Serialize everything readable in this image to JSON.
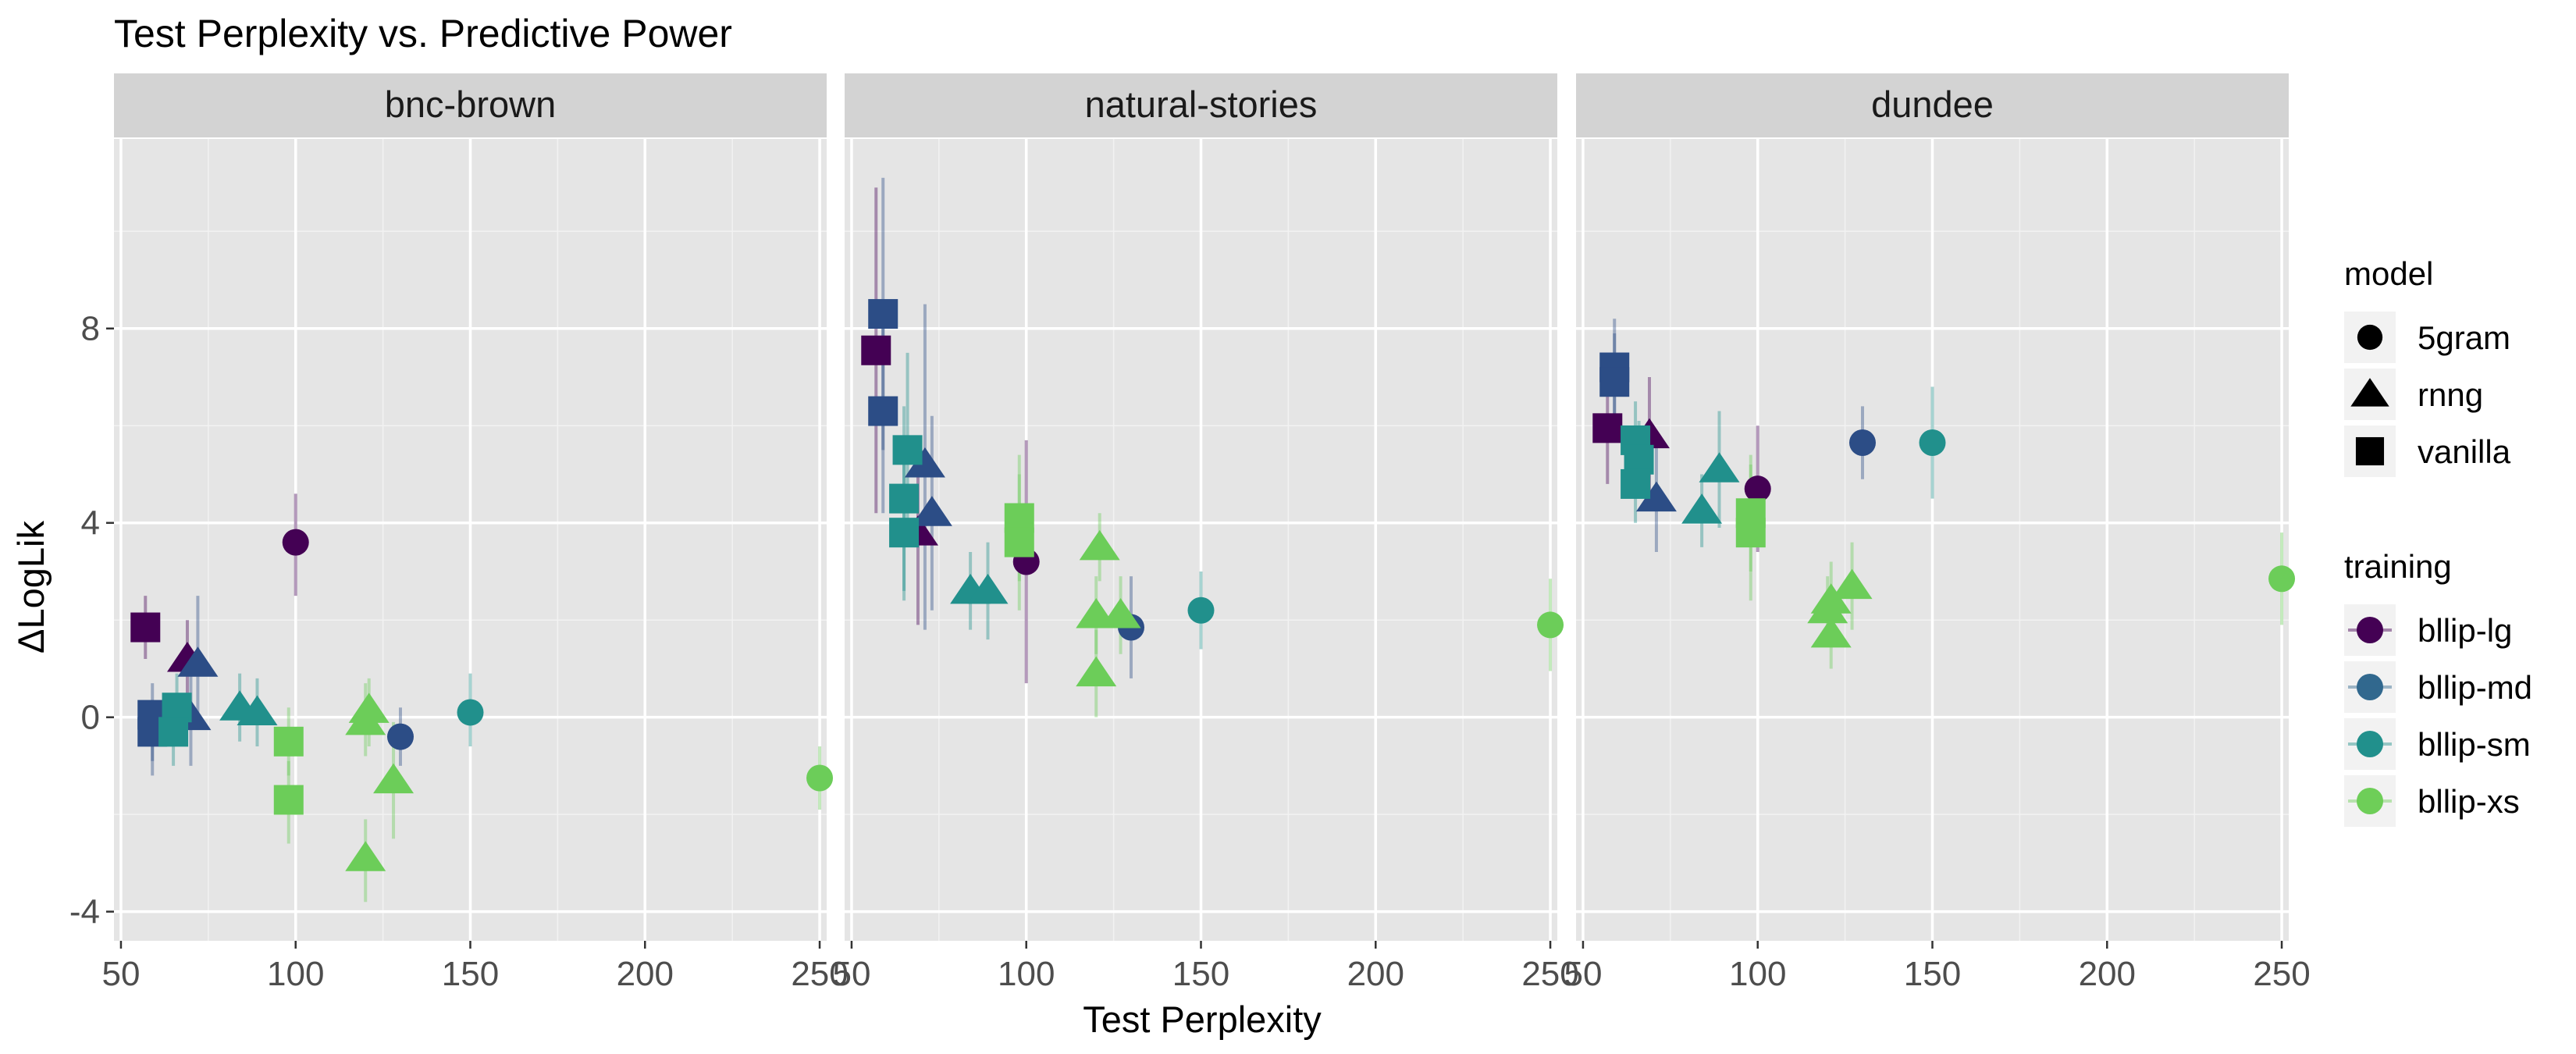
{
  "chart_data": {
    "type": "scatter",
    "title": "Test Perplexity vs. Predictive Power",
    "xlabel": "Test Perplexity",
    "ylabel": "ΔLogLik",
    "xlim": [
      48,
      252
    ],
    "ylim": [
      -4.6,
      11.9
    ],
    "x_ticks": [
      50,
      100,
      150,
      200,
      250
    ],
    "x_tick_labels": [
      "50",
      "100",
      "150",
      "200",
      "250"
    ],
    "y_ticks": [
      -4,
      0,
      4,
      8
    ],
    "y_tick_labels": [
      "-4",
      "0",
      "4",
      "8"
    ],
    "grid": true,
    "facets": [
      "bnc-brown",
      "natural-stories",
      "dundee"
    ],
    "legend_position": "right",
    "legend": {
      "model_title": "model",
      "model": [
        {
          "name": "5gram",
          "shape": "circle"
        },
        {
          "name": "rnng",
          "shape": "triangle"
        },
        {
          "name": "vanilla",
          "shape": "square"
        }
      ],
      "training_title": "training",
      "training": [
        {
          "name": "bllip-lg",
          "color": "#440154"
        },
        {
          "name": "bllip-md",
          "color": "#31688e"
        },
        {
          "name": "bllip-sm",
          "color": "#21908c"
        },
        {
          "name": "bllip-xs",
          "color": "#6ece58"
        }
      ]
    },
    "colors": {
      "bllip-lg": "#440154",
      "bllip-md": "#2c4d86",
      "bllip-sm": "#21908c",
      "bllip-xs": "#6ccd59",
      "panel_bg": "#e5e5e5",
      "strip_bg": "#d3d3d3",
      "grid": "#ffffff"
    },
    "points": [
      {
        "facet": "bnc-brown",
        "model": "5gram",
        "training": "bllip-lg",
        "x": 100,
        "y": 3.6,
        "ymin": 2.5,
        "ymax": 4.6
      },
      {
        "facet": "bnc-brown",
        "model": "5gram",
        "training": "bllip-md",
        "x": 130,
        "y": -0.4,
        "ymin": -1.0,
        "ymax": 0.2
      },
      {
        "facet": "bnc-brown",
        "model": "5gram",
        "training": "bllip-sm",
        "x": 150,
        "y": 0.1,
        "ymin": -0.6,
        "ymax": 0.9
      },
      {
        "facet": "bnc-brown",
        "model": "5gram",
        "training": "bllip-xs",
        "x": 250,
        "y": -1.25,
        "ymin": -1.9,
        "ymax": -0.6
      },
      {
        "facet": "bnc-brown",
        "model": "rnng",
        "training": "bllip-lg",
        "x": 69,
        "y": 1.2,
        "ymin": 0.3,
        "ymax": 2.0
      },
      {
        "facet": "bnc-brown",
        "model": "rnng",
        "training": "bllip-md",
        "x": 72,
        "y": 1.1,
        "ymin": -0.2,
        "ymax": 2.5
      },
      {
        "facet": "bnc-brown",
        "model": "rnng",
        "training": "bllip-md",
        "x": 70,
        "y": 0.0,
        "ymin": -1.0,
        "ymax": 1.0
      },
      {
        "facet": "bnc-brown",
        "model": "rnng",
        "training": "bllip-sm",
        "x": 84,
        "y": 0.2,
        "ymin": -0.5,
        "ymax": 0.9
      },
      {
        "facet": "bnc-brown",
        "model": "rnng",
        "training": "bllip-sm",
        "x": 89,
        "y": 0.1,
        "ymin": -0.6,
        "ymax": 0.8
      },
      {
        "facet": "bnc-brown",
        "model": "rnng",
        "training": "bllip-xs",
        "x": 121,
        "y": 0.15,
        "ymin": -0.6,
        "ymax": 0.8
      },
      {
        "facet": "bnc-brown",
        "model": "rnng",
        "training": "bllip-xs",
        "x": 120,
        "y": -0.1,
        "ymin": -0.8,
        "ymax": 0.7
      },
      {
        "facet": "bnc-brown",
        "model": "rnng",
        "training": "bllip-xs",
        "x": 128,
        "y": -1.3,
        "ymin": -2.5,
        "ymax": -0.1
      },
      {
        "facet": "bnc-brown",
        "model": "rnng",
        "training": "bllip-xs",
        "x": 120,
        "y": -2.9,
        "ymin": -3.8,
        "ymax": -2.1
      },
      {
        "facet": "bnc-brown",
        "model": "vanilla",
        "training": "bllip-lg",
        "x": 57,
        "y": 1.85,
        "ymin": 1.2,
        "ymax": 2.5
      },
      {
        "facet": "bnc-brown",
        "model": "vanilla",
        "training": "bllip-md",
        "x": 59,
        "y": 0.05,
        "ymin": -0.9,
        "ymax": 0.7
      },
      {
        "facet": "bnc-brown",
        "model": "vanilla",
        "training": "bllip-md",
        "x": 59,
        "y": -0.3,
        "ymin": -1.2,
        "ymax": 0.3
      },
      {
        "facet": "bnc-brown",
        "model": "vanilla",
        "training": "bllip-sm",
        "x": 66,
        "y": 0.2,
        "ymin": -0.5,
        "ymax": 0.9
      },
      {
        "facet": "bnc-brown",
        "model": "vanilla",
        "training": "bllip-sm",
        "x": 65,
        "y": -0.3,
        "ymin": -1.0,
        "ymax": 0.4
      },
      {
        "facet": "bnc-brown",
        "model": "vanilla",
        "training": "bllip-xs",
        "x": 98,
        "y": -0.5,
        "ymin": -1.2,
        "ymax": 0.2
      },
      {
        "facet": "bnc-brown",
        "model": "vanilla",
        "training": "bllip-xs",
        "x": 98,
        "y": -1.7,
        "ymin": -2.6,
        "ymax": -0.9
      },
      {
        "facet": "natural-stories",
        "model": "5gram",
        "training": "bllip-lg",
        "x": 100,
        "y": 3.2,
        "ymin": 0.7,
        "ymax": 5.7
      },
      {
        "facet": "natural-stories",
        "model": "5gram",
        "training": "bllip-md",
        "x": 130,
        "y": 1.85,
        "ymin": 0.8,
        "ymax": 2.9
      },
      {
        "facet": "natural-stories",
        "model": "5gram",
        "training": "bllip-sm",
        "x": 150,
        "y": 2.2,
        "ymin": 1.4,
        "ymax": 3.0
      },
      {
        "facet": "natural-stories",
        "model": "5gram",
        "training": "bllip-xs",
        "x": 250,
        "y": 1.9,
        "ymin": 0.95,
        "ymax": 2.85
      },
      {
        "facet": "natural-stories",
        "model": "rnng",
        "training": "bllip-lg",
        "x": 69,
        "y": 3.8,
        "ymin": 1.9,
        "ymax": 5.7
      },
      {
        "facet": "natural-stories",
        "model": "rnng",
        "training": "bllip-md",
        "x": 71,
        "y": 5.2,
        "ymin": 1.8,
        "ymax": 8.5
      },
      {
        "facet": "natural-stories",
        "model": "rnng",
        "training": "bllip-md",
        "x": 73,
        "y": 4.2,
        "ymin": 2.2,
        "ymax": 6.2
      },
      {
        "facet": "natural-stories",
        "model": "rnng",
        "training": "bllip-sm",
        "x": 84,
        "y": 2.6,
        "ymin": 1.8,
        "ymax": 3.4
      },
      {
        "facet": "natural-stories",
        "model": "rnng",
        "training": "bllip-sm",
        "x": 89,
        "y": 2.6,
        "ymin": 1.6,
        "ymax": 3.6
      },
      {
        "facet": "natural-stories",
        "model": "rnng",
        "training": "bllip-xs",
        "x": 121,
        "y": 3.5,
        "ymin": 2.8,
        "ymax": 4.2
      },
      {
        "facet": "natural-stories",
        "model": "rnng",
        "training": "bllip-xs",
        "x": 120,
        "y": 2.1,
        "ymin": 1.3,
        "ymax": 2.9
      },
      {
        "facet": "natural-stories",
        "model": "rnng",
        "training": "bllip-xs",
        "x": 127,
        "y": 2.1,
        "ymin": 1.3,
        "ymax": 2.9
      },
      {
        "facet": "natural-stories",
        "model": "rnng",
        "training": "bllip-xs",
        "x": 120,
        "y": 0.9,
        "ymin": 0.0,
        "ymax": 1.8
      },
      {
        "facet": "natural-stories",
        "model": "vanilla",
        "training": "bllip-lg",
        "x": 57,
        "y": 7.55,
        "ymin": 4.2,
        "ymax": 10.9
      },
      {
        "facet": "natural-stories",
        "model": "vanilla",
        "training": "bllip-md",
        "x": 59,
        "y": 8.3,
        "ymin": 5.5,
        "ymax": 11.1
      },
      {
        "facet": "natural-stories",
        "model": "vanilla",
        "training": "bllip-md",
        "x": 59,
        "y": 6.3,
        "ymin": 4.2,
        "ymax": 8.4
      },
      {
        "facet": "natural-stories",
        "model": "vanilla",
        "training": "bllip-sm",
        "x": 66,
        "y": 5.5,
        "ymin": 3.5,
        "ymax": 7.5
      },
      {
        "facet": "natural-stories",
        "model": "vanilla",
        "training": "bllip-sm",
        "x": 65,
        "y": 4.5,
        "ymin": 2.6,
        "ymax": 6.4
      },
      {
        "facet": "natural-stories",
        "model": "vanilla",
        "training": "bllip-sm",
        "x": 65,
        "y": 3.8,
        "ymin": 2.4,
        "ymax": 5.2
      },
      {
        "facet": "natural-stories",
        "model": "vanilla",
        "training": "bllip-xs",
        "x": 98,
        "y": 4.1,
        "ymin": 2.8,
        "ymax": 5.4
      },
      {
        "facet": "natural-stories",
        "model": "vanilla",
        "training": "bllip-xs",
        "x": 98,
        "y": 3.6,
        "ymin": 2.2,
        "ymax": 5.0
      },
      {
        "facet": "dundee",
        "model": "5gram",
        "training": "bllip-lg",
        "x": 100,
        "y": 4.7,
        "ymin": 3.4,
        "ymax": 6.0
      },
      {
        "facet": "dundee",
        "model": "5gram",
        "training": "bllip-md",
        "x": 130,
        "y": 5.65,
        "ymin": 4.9,
        "ymax": 6.4
      },
      {
        "facet": "dundee",
        "model": "5gram",
        "training": "bllip-sm",
        "x": 150,
        "y": 5.65,
        "ymin": 4.5,
        "ymax": 6.8
      },
      {
        "facet": "dundee",
        "model": "5gram",
        "training": "bllip-xs",
        "x": 250,
        "y": 2.85,
        "ymin": 1.9,
        "ymax": 3.8
      },
      {
        "facet": "dundee",
        "model": "rnng",
        "training": "bllip-lg",
        "x": 69,
        "y": 5.8,
        "ymin": 4.6,
        "ymax": 7.0
      },
      {
        "facet": "dundee",
        "model": "rnng",
        "training": "bllip-md",
        "x": 71,
        "y": 4.5,
        "ymin": 3.4,
        "ymax": 5.6
      },
      {
        "facet": "dundee",
        "model": "rnng",
        "training": "bllip-sm",
        "x": 84,
        "y": 4.25,
        "ymin": 3.5,
        "ymax": 5.0
      },
      {
        "facet": "dundee",
        "model": "rnng",
        "training": "bllip-sm",
        "x": 89,
        "y": 5.1,
        "ymin": 3.9,
        "ymax": 6.3
      },
      {
        "facet": "dundee",
        "model": "rnng",
        "training": "bllip-xs",
        "x": 127,
        "y": 2.7,
        "ymin": 1.8,
        "ymax": 3.6
      },
      {
        "facet": "dundee",
        "model": "rnng",
        "training": "bllip-xs",
        "x": 121,
        "y": 2.4,
        "ymin": 1.6,
        "ymax": 3.2
      },
      {
        "facet": "dundee",
        "model": "rnng",
        "training": "bllip-xs",
        "x": 120,
        "y": 2.2,
        "ymin": 1.5,
        "ymax": 2.9
      },
      {
        "facet": "dundee",
        "model": "rnng",
        "training": "bllip-xs",
        "x": 121,
        "y": 1.7,
        "ymin": 1.0,
        "ymax": 2.4
      },
      {
        "facet": "dundee",
        "model": "vanilla",
        "training": "bllip-lg",
        "x": 57,
        "y": 5.95,
        "ymin": 4.8,
        "ymax": 7.1
      },
      {
        "facet": "dundee",
        "model": "vanilla",
        "training": "bllip-md",
        "x": 59,
        "y": 7.2,
        "ymin": 6.2,
        "ymax": 8.2
      },
      {
        "facet": "dundee",
        "model": "vanilla",
        "training": "bllip-md",
        "x": 59,
        "y": 6.9,
        "ymin": 5.9,
        "ymax": 7.9
      },
      {
        "facet": "dundee",
        "model": "vanilla",
        "training": "bllip-sm",
        "x": 65,
        "y": 5.7,
        "ymin": 4.9,
        "ymax": 6.5
      },
      {
        "facet": "dundee",
        "model": "vanilla",
        "training": "bllip-sm",
        "x": 66,
        "y": 5.3,
        "ymin": 4.5,
        "ymax": 6.1
      },
      {
        "facet": "dundee",
        "model": "vanilla",
        "training": "bllip-sm",
        "x": 65,
        "y": 4.8,
        "ymin": 4.0,
        "ymax": 5.6
      },
      {
        "facet": "dundee",
        "model": "vanilla",
        "training": "bllip-xs",
        "x": 98,
        "y": 4.2,
        "ymin": 3.0,
        "ymax": 5.4
      },
      {
        "facet": "dundee",
        "model": "vanilla",
        "training": "bllip-xs",
        "x": 98,
        "y": 3.8,
        "ymin": 2.4,
        "ymax": 5.2
      }
    ]
  }
}
